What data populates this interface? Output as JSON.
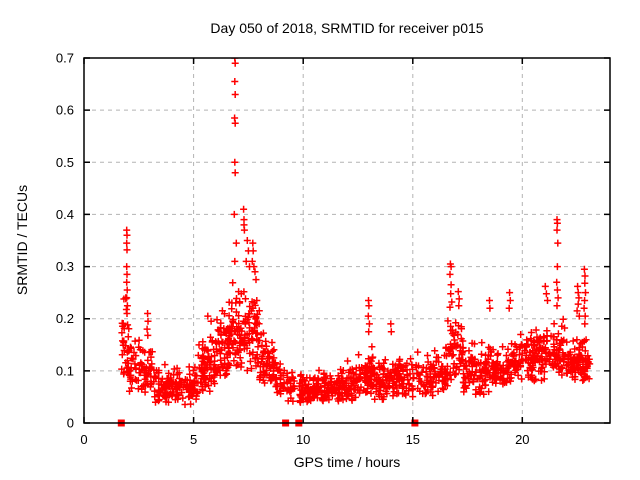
{
  "chart_data": {
    "type": "scatter",
    "title": "Day 050 of 2018, SRMTID for receiver p015",
    "xlabel": "GPS time / hours",
    "ylabel": "SRMTID / TECUs",
    "xlim": [
      0,
      24
    ],
    "ylim": [
      0,
      0.7
    ],
    "xticks": {
      "values": [
        0,
        5,
        10,
        15,
        20
      ],
      "labels": [
        "0",
        "5",
        "10",
        "15",
        "20"
      ]
    },
    "yticks": {
      "values": [
        0,
        0.1,
        0.2,
        0.3,
        0.4,
        0.5,
        0.6,
        0.7
      ],
      "labels": [
        "0",
        "0.1",
        "0.2",
        "0.3",
        "0.4",
        "0.5",
        "0.6",
        "0.7"
      ]
    },
    "grid": {
      "show": true,
      "color": "#b3b3b3",
      "dash": "4,4"
    },
    "border_color": "#000000",
    "marker": {
      "shape": "plus",
      "color": "#ff0000",
      "size": 7,
      "stroke": 1.5
    },
    "gap_markers": {
      "shape": "square",
      "color": "#ff0000",
      "y": 0,
      "size": 7,
      "x": [
        1.7,
        9.2,
        9.8,
        15.1
      ]
    },
    "seed": 20180050,
    "series": [
      {
        "name": "SRMTID",
        "bands": [
          [
            1.7,
            2.05,
            30,
            0.07,
            0.26
          ],
          [
            2.05,
            2.6,
            35,
            0.06,
            0.17
          ],
          [
            2.6,
            3.2,
            40,
            0.05,
            0.16
          ],
          [
            3.2,
            4.2,
            70,
            0.035,
            0.12
          ],
          [
            4.2,
            5.2,
            70,
            0.035,
            0.13
          ],
          [
            5.2,
            6.0,
            70,
            0.06,
            0.18
          ],
          [
            6.0,
            6.6,
            60,
            0.08,
            0.22
          ],
          [
            6.6,
            7.2,
            60,
            0.1,
            0.28
          ],
          [
            7.2,
            8.0,
            70,
            0.1,
            0.26
          ],
          [
            8.0,
            8.7,
            55,
            0.07,
            0.18
          ],
          [
            8.7,
            9.15,
            30,
            0.05,
            0.13
          ],
          [
            9.25,
            9.7,
            25,
            0.04,
            0.11
          ],
          [
            9.8,
            10.5,
            55,
            0.035,
            0.1
          ],
          [
            10.5,
            11.5,
            75,
            0.04,
            0.11
          ],
          [
            11.5,
            12.5,
            80,
            0.04,
            0.12
          ],
          [
            12.5,
            13.2,
            60,
            0.05,
            0.15
          ],
          [
            13.2,
            14.2,
            75,
            0.04,
            0.13
          ],
          [
            14.2,
            15.05,
            55,
            0.05,
            0.13
          ],
          [
            15.15,
            16.0,
            55,
            0.05,
            0.14
          ],
          [
            16.0,
            16.6,
            45,
            0.06,
            0.16
          ],
          [
            16.6,
            17.3,
            55,
            0.08,
            0.22
          ],
          [
            17.3,
            18.5,
            85,
            0.05,
            0.16
          ],
          [
            18.5,
            19.5,
            75,
            0.07,
            0.16
          ],
          [
            19.5,
            20.5,
            75,
            0.08,
            0.18
          ],
          [
            20.5,
            21.4,
            75,
            0.08,
            0.19
          ],
          [
            21.4,
            22.0,
            50,
            0.09,
            0.2
          ],
          [
            22.0,
            22.6,
            50,
            0.08,
            0.18
          ],
          [
            22.6,
            23.1,
            40,
            0.08,
            0.17
          ]
        ],
        "outliers": [
          [
            6.88,
            0.7
          ],
          [
            6.9,
            0.69
          ],
          [
            6.88,
            0.655
          ],
          [
            6.9,
            0.63
          ],
          [
            6.87,
            0.585
          ],
          [
            6.9,
            0.575
          ],
          [
            6.88,
            0.5
          ],
          [
            6.9,
            0.48
          ],
          [
            6.86,
            0.4
          ],
          [
            6.95,
            0.345
          ],
          [
            6.88,
            0.31
          ],
          [
            7.28,
            0.41
          ],
          [
            7.3,
            0.39
          ],
          [
            7.3,
            0.38
          ],
          [
            7.32,
            0.37
          ],
          [
            7.4,
            0.31
          ],
          [
            7.45,
            0.35
          ],
          [
            7.5,
            0.33
          ],
          [
            7.55,
            0.3
          ],
          [
            7.7,
            0.345
          ],
          [
            7.72,
            0.33
          ],
          [
            7.68,
            0.31
          ],
          [
            7.75,
            0.3
          ],
          [
            7.8,
            0.29
          ],
          [
            7.85,
            0.275
          ],
          [
            1.95,
            0.37
          ],
          [
            1.96,
            0.36
          ],
          [
            1.95,
            0.345
          ],
          [
            1.96,
            0.332
          ],
          [
            1.95,
            0.3
          ],
          [
            1.96,
            0.285
          ],
          [
            1.95,
            0.27
          ],
          [
            1.97,
            0.255
          ],
          [
            1.95,
            0.24
          ],
          [
            1.98,
            0.225
          ],
          [
            1.96,
            0.21
          ],
          [
            2.9,
            0.21
          ],
          [
            2.92,
            0.195
          ],
          [
            2.88,
            0.18
          ],
          [
            2.91,
            0.168
          ],
          [
            5.65,
            0.205
          ],
          [
            5.8,
            0.195
          ],
          [
            12.98,
            0.235
          ],
          [
            13.0,
            0.225
          ],
          [
            12.97,
            0.205
          ],
          [
            13.02,
            0.19
          ],
          [
            12.99,
            0.175
          ],
          [
            14.0,
            0.19
          ],
          [
            14.02,
            0.175
          ],
          [
            16.72,
            0.305
          ],
          [
            16.75,
            0.3
          ],
          [
            16.7,
            0.285
          ],
          [
            16.75,
            0.265
          ],
          [
            16.73,
            0.248
          ],
          [
            16.78,
            0.232
          ],
          [
            16.7,
            0.222
          ],
          [
            17.08,
            0.252
          ],
          [
            17.12,
            0.238
          ],
          [
            17.1,
            0.225
          ],
          [
            18.5,
            0.235
          ],
          [
            18.52,
            0.22
          ],
          [
            19.42,
            0.25
          ],
          [
            19.45,
            0.235
          ],
          [
            19.4,
            0.22
          ],
          [
            21.05,
            0.262
          ],
          [
            21.1,
            0.248
          ],
          [
            21.15,
            0.235
          ],
          [
            21.58,
            0.39
          ],
          [
            21.6,
            0.383
          ],
          [
            21.58,
            0.37
          ],
          [
            21.62,
            0.345
          ],
          [
            21.6,
            0.3
          ],
          [
            21.57,
            0.27
          ],
          [
            21.6,
            0.255
          ],
          [
            21.63,
            0.24
          ],
          [
            21.58,
            0.225
          ],
          [
            22.52,
            0.262
          ],
          [
            22.55,
            0.25
          ],
          [
            22.58,
            0.24
          ],
          [
            22.55,
            0.228
          ],
          [
            22.5,
            0.215
          ],
          [
            22.6,
            0.205
          ],
          [
            22.83,
            0.295
          ],
          [
            22.86,
            0.282
          ],
          [
            22.85,
            0.268
          ],
          [
            22.88,
            0.25
          ],
          [
            22.84,
            0.235
          ],
          [
            22.82,
            0.22
          ],
          [
            22.87,
            0.205
          ],
          [
            22.85,
            0.19
          ]
        ]
      }
    ]
  }
}
